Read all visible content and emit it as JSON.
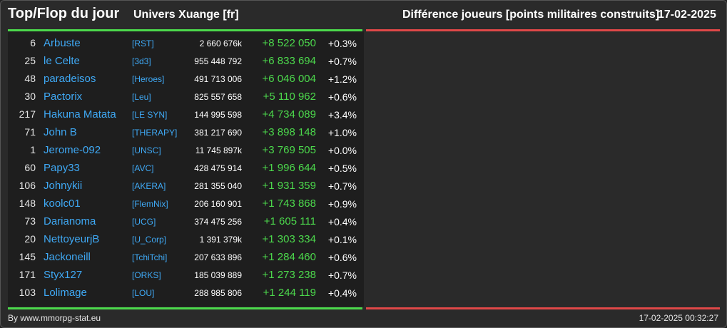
{
  "header": {
    "title": "Top/Flop du jour",
    "universe": "Univers Xuange [fr]",
    "description": "Différence joueurs [points militaires construits]",
    "date": "17-02-2025"
  },
  "colors": {
    "gain": "#4cd94c",
    "loss": "#e04848",
    "link": "#3fa9f5"
  },
  "rows": [
    {
      "rank": "6",
      "name": "Arbuste",
      "tag": "[RST]",
      "points": "2 660 676k",
      "delta": "+8 522 050",
      "pct": "+0.3%"
    },
    {
      "rank": "25",
      "name": "le Celte",
      "tag": "[3d3]",
      "points": "955 448 792",
      "delta": "+6 833 694",
      "pct": "+0.7%"
    },
    {
      "rank": "48",
      "name": "paradeisos",
      "tag": "[Heroes]",
      "points": "491 713 006",
      "delta": "+6 046 004",
      "pct": "+1.2%"
    },
    {
      "rank": "30",
      "name": "Pactorix",
      "tag": "[Leu]",
      "points": "825 557 658",
      "delta": "+5 110 962",
      "pct": "+0.6%"
    },
    {
      "rank": "217",
      "name": "Hakuna Matata",
      "tag": "[LE SYN]",
      "points": "144 995 598",
      "delta": "+4 734 089",
      "pct": "+3.4%"
    },
    {
      "rank": "71",
      "name": "John B",
      "tag": "[THERAPY]",
      "points": "381 217 690",
      "delta": "+3 898 148",
      "pct": "+1.0%"
    },
    {
      "rank": "1",
      "name": "Jerome-092",
      "tag": "[UNSC]",
      "points": "11 745 897k",
      "delta": "+3 769 505",
      "pct": "+0.0%"
    },
    {
      "rank": "60",
      "name": "Papy33",
      "tag": "[AVC]",
      "points": "428 475 914",
      "delta": "+1 996 644",
      "pct": "+0.5%"
    },
    {
      "rank": "106",
      "name": "Johnykii",
      "tag": "[AKERA]",
      "points": "281 355 040",
      "delta": "+1 931 359",
      "pct": "+0.7%"
    },
    {
      "rank": "148",
      "name": "koolc01",
      "tag": "[FlemNix]",
      "points": "206 160 901",
      "delta": "+1 743 868",
      "pct": "+0.9%"
    },
    {
      "rank": "73",
      "name": "Darianoma",
      "tag": "[UCG]",
      "points": "374 475 256",
      "delta": "+1 605 111",
      "pct": "+0.4%"
    },
    {
      "rank": "20",
      "name": "NettoyeurjB",
      "tag": "[U_Corp]",
      "points": "1 391 379k",
      "delta": "+1 303 334",
      "pct": "+0.1%"
    },
    {
      "rank": "145",
      "name": "Jackoneill",
      "tag": "[TchiTchi]",
      "points": "207 633 896",
      "delta": "+1 284 460",
      "pct": "+0.6%"
    },
    {
      "rank": "171",
      "name": "Styx127",
      "tag": "[ORKS]",
      "points": "185 039 889",
      "delta": "+1 273 238",
      "pct": "+0.7%"
    },
    {
      "rank": "103",
      "name": "Lolimage",
      "tag": "[LOU]",
      "points": "288 985 806",
      "delta": "+1 244 119",
      "pct": "+0.4%"
    }
  ],
  "footer": {
    "credit": "By www.mmorpg-stat.eu",
    "timestamp": "17-02-2025 00:32:27"
  }
}
